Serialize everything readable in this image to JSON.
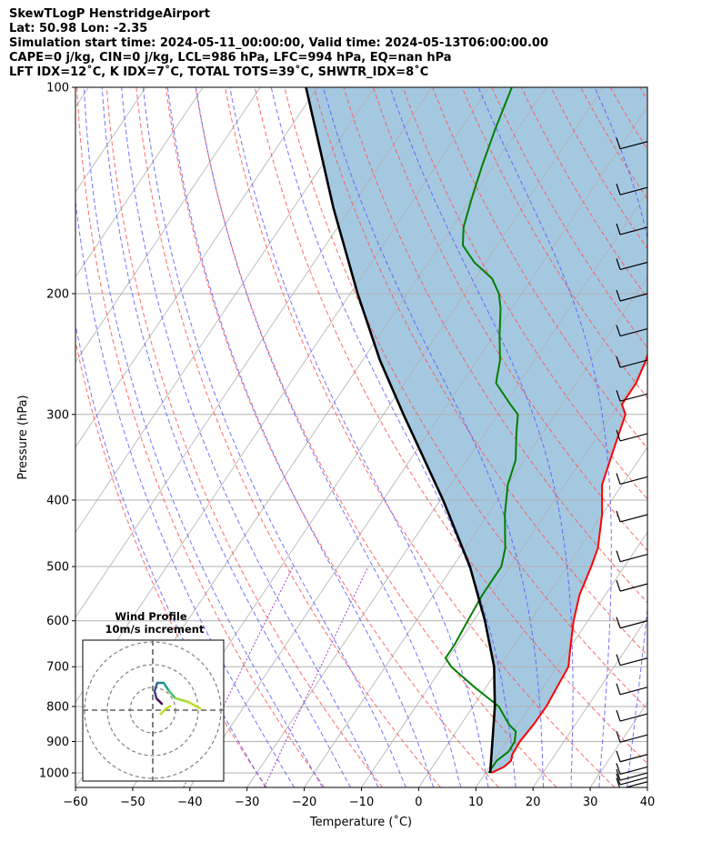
{
  "header": {
    "line1": "SkewTLogP HenstridgeAirport",
    "line2": "Lat: 50.98   Lon: -2.35",
    "line3": "Simulation start time: 2024-05-11_00:00:00, Valid time: 2024-05-13T06:00:00.00",
    "line4": "CAPE=0 j/kg, CIN=0 j/kg, LCL=986 hPa, LFC=994 hPa, EQ=nan hPa",
    "line5": "LFT IDX=12˚C, K IDX=7˚C, TOTAL TOTS=39˚C, SHWTR_IDX=8˚C"
  },
  "chart_data": {
    "type": "line",
    "xlabel": "Temperature (˚C)",
    "ylabel": "Pressure (hPa)",
    "xlim": [
      -60,
      40
    ],
    "ylim": [
      1050,
      100
    ],
    "y_scale": "log",
    "skew": true,
    "grid": true,
    "x_ticks": [
      -60,
      -50,
      -40,
      -30,
      -20,
      -10,
      0,
      10,
      20,
      30,
      40
    ],
    "x_tick_labels": [
      "−60",
      "−50",
      "−40",
      "−30",
      "−20",
      "−10",
      "0",
      "10",
      "20",
      "30",
      "40"
    ],
    "y_ticks": [
      1000,
      900,
      800,
      700,
      600,
      500,
      400,
      300,
      200,
      100
    ],
    "y_tick_labels": [
      "1000",
      "900",
      "800",
      "700",
      "600",
      "500",
      "400",
      "300",
      "200",
      "100"
    ],
    "colors": {
      "temperature": "#ff0000",
      "dewpoint": "#008000",
      "parcel": "#000000",
      "shading": "#a5c8e1",
      "dry_adiabat": "#ff5050",
      "moist_adiabat": "#5050ff",
      "isotherm": "#b0b0b0",
      "mixing_ratio": "#a040c0"
    },
    "series": [
      {
        "key": "temperature",
        "style": "red solid",
        "points": [
          [
            1000,
            11
          ],
          [
            980,
            12.5
          ],
          [
            960,
            13
          ],
          [
            940,
            12.5
          ],
          [
            900,
            12.3
          ],
          [
            850,
            12.7
          ],
          [
            800,
            12.8
          ],
          [
            750,
            12.4
          ],
          [
            700,
            12
          ],
          [
            650,
            9.8
          ],
          [
            600,
            7.5
          ],
          [
            550,
            5.5
          ],
          [
            500,
            4.2
          ],
          [
            470,
            3.2
          ],
          [
            420,
            0
          ],
          [
            380,
            -3.5
          ],
          [
            340,
            -5.5
          ],
          [
            300,
            -7.7
          ],
          [
            290,
            -9.5
          ],
          [
            270,
            -9.5
          ],
          [
            250,
            -10.5
          ],
          [
            230,
            -12
          ],
          [
            215,
            -14
          ],
          [
            205,
            -13.5
          ],
          [
            190,
            -14
          ],
          [
            175,
            -14.5
          ],
          [
            160,
            -16.5
          ],
          [
            150,
            -18.5
          ],
          [
            140,
            -20
          ],
          [
            130,
            -22.5
          ],
          [
            120,
            -25.5
          ],
          [
            110,
            -28
          ],
          [
            100,
            -31
          ]
        ]
      },
      {
        "key": "dewpoint",
        "style": "green solid",
        "points": [
          [
            1000,
            10.5
          ],
          [
            960,
            10.5
          ],
          [
            930,
            11.5
          ],
          [
            900,
            11.4
          ],
          [
            870,
            10.4
          ],
          [
            850,
            8.4
          ],
          [
            800,
            4.5
          ],
          [
            750,
            -2
          ],
          [
            700,
            -8.5
          ],
          [
            680,
            -10.5
          ],
          [
            650,
            -10.5
          ],
          [
            600,
            -11
          ],
          [
            550,
            -11.5
          ],
          [
            500,
            -11.5
          ],
          [
            470,
            -13
          ],
          [
            420,
            -17
          ],
          [
            380,
            -20
          ],
          [
            350,
            -21.5
          ],
          [
            320,
            -24.5
          ],
          [
            300,
            -26.5
          ],
          [
            290,
            -29
          ],
          [
            270,
            -34
          ],
          [
            250,
            -36
          ],
          [
            230,
            -39
          ],
          [
            210,
            -42
          ],
          [
            200,
            -44
          ],
          [
            190,
            -47
          ],
          [
            180,
            -52
          ],
          [
            170,
            -56
          ],
          [
            160,
            -58
          ],
          [
            145,
            -60
          ],
          [
            130,
            -62
          ],
          [
            115,
            -64
          ],
          [
            100,
            -66
          ]
        ]
      },
      {
        "key": "parcel",
        "style": "black thick",
        "points": [
          [
            1000,
            10.8
          ],
          [
            900,
            7.5
          ],
          [
            800,
            3.8
          ],
          [
            700,
            -1
          ],
          [
            600,
            -8
          ],
          [
            500,
            -17
          ],
          [
            400,
            -29.5
          ],
          [
            300,
            -46.5
          ],
          [
            250,
            -57
          ],
          [
            200,
            -68.7
          ],
          [
            150,
            -83
          ],
          [
            100,
            -102
          ]
        ]
      }
    ],
    "wind_barbs": {
      "pressures": [
        120,
        140,
        160,
        180,
        200,
        225,
        250,
        280,
        320,
        370,
        420,
        480,
        530,
        600,
        680,
        750,
        820,
        880,
        940,
        980,
        1000,
        1015,
        1030
      ]
    },
    "inset": {
      "title": "Wind Profile",
      "subtitle": "10m/s increment"
    }
  }
}
